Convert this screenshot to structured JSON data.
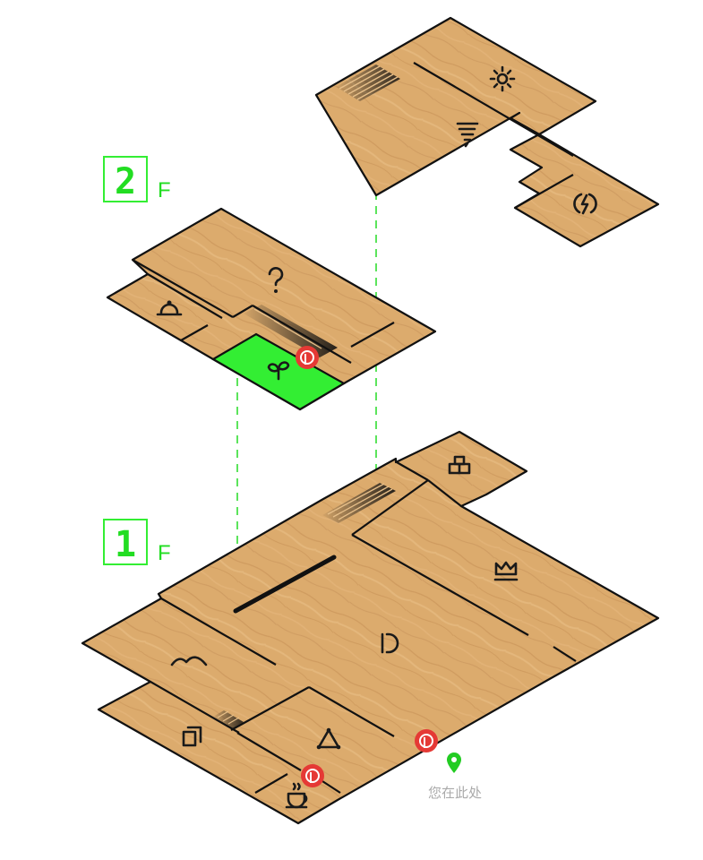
{
  "floors": [
    {
      "id": "2F",
      "number": "2",
      "suffix": "F"
    },
    {
      "id": "1F",
      "number": "1",
      "suffix": "F"
    }
  ],
  "you_are_here": {
    "label": "您在此处",
    "icon": "location-pin-icon",
    "color": "#22cc22"
  },
  "colors": {
    "accent": "#33ee33",
    "marker": "#e53935",
    "floor": "#d9a86b"
  },
  "rooms_2f_upper": [
    {
      "id": "sun",
      "icon": "sun-icon"
    },
    {
      "id": "tornado",
      "icon": "tornado-icon"
    },
    {
      "id": "power",
      "icon": "power-icon"
    }
  ],
  "rooms_2f_lower": [
    {
      "id": "help",
      "icon": "question-icon"
    },
    {
      "id": "reception",
      "icon": "reception-bell-icon"
    },
    {
      "id": "garden",
      "icon": "sprout-icon",
      "highlighted": true
    }
  ],
  "rooms_1f": [
    {
      "id": "boxes",
      "icon": "stacked-boxes-icon"
    },
    {
      "id": "crown",
      "icon": "crown-icon"
    },
    {
      "id": "main",
      "icon": "letter-d-icon"
    },
    {
      "id": "hills",
      "icon": "hills-icon"
    },
    {
      "id": "cards",
      "icon": "copy-icon"
    },
    {
      "id": "triangle",
      "icon": "triangle-icon"
    },
    {
      "id": "cafe",
      "icon": "coffee-cup-icon"
    }
  ],
  "markers": [
    {
      "id": "marker-2f-garden",
      "icon": "red-pin-marker-icon"
    },
    {
      "id": "marker-1f-entrance",
      "icon": "red-pin-marker-icon"
    },
    {
      "id": "marker-1f-cafe",
      "icon": "red-pin-marker-icon"
    }
  ]
}
